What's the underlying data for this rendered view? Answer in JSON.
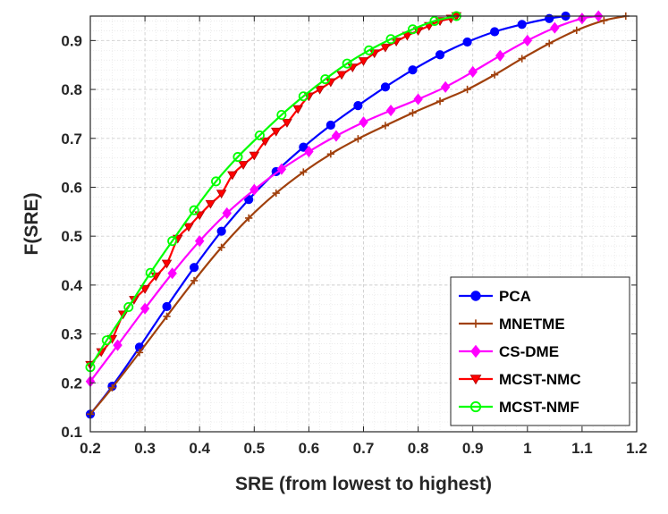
{
  "chart_data": {
    "type": "line",
    "xlabel": "SRE (from lowest to highest)",
    "ylabel": "F(SRE)",
    "xlim": [
      0.2,
      1.2
    ],
    "ylim": [
      0.1,
      0.95
    ],
    "x_ticks": [
      "0.2",
      "0.3",
      "0.4",
      "0.5",
      "0.6",
      "0.7",
      "0.8",
      "0.9",
      "1",
      "1.1",
      "1.2"
    ],
    "y_ticks": [
      "0.1",
      "0.2",
      "0.3",
      "0.4",
      "0.5",
      "0.6",
      "0.7",
      "0.8",
      "0.9"
    ],
    "grid": true,
    "minor_grid": true,
    "legend_position": "bottom-right",
    "series": [
      {
        "name": "PCA",
        "color": "#0000ff",
        "marker": "circle",
        "x": [
          0.2,
          0.24,
          0.29,
          0.34,
          0.39,
          0.44,
          0.49,
          0.54,
          0.59,
          0.64,
          0.69,
          0.74,
          0.79,
          0.84,
          0.89,
          0.94,
          0.99,
          1.04,
          1.07
        ],
        "y": [
          0.136,
          0.193,
          0.273,
          0.356,
          0.436,
          0.51,
          0.575,
          0.632,
          0.682,
          0.727,
          0.767,
          0.805,
          0.84,
          0.871,
          0.897,
          0.918,
          0.933,
          0.945,
          0.95
        ]
      },
      {
        "name": "MNETME",
        "color": "#a0400c",
        "marker": "plus",
        "x": [
          0.2,
          0.24,
          0.29,
          0.34,
          0.39,
          0.44,
          0.49,
          0.54,
          0.59,
          0.64,
          0.69,
          0.74,
          0.79,
          0.84,
          0.89,
          0.94,
          0.99,
          1.04,
          1.09,
          1.14,
          1.18
        ],
        "y": [
          0.136,
          0.19,
          0.262,
          0.336,
          0.409,
          0.477,
          0.537,
          0.588,
          0.631,
          0.668,
          0.699,
          0.726,
          0.752,
          0.776,
          0.8,
          0.83,
          0.863,
          0.894,
          0.921,
          0.941,
          0.95
        ]
      },
      {
        "name": "CS-DME",
        "color": "#ff00ff",
        "marker": "diamond",
        "x": [
          0.2,
          0.25,
          0.3,
          0.35,
          0.4,
          0.45,
          0.5,
          0.55,
          0.6,
          0.65,
          0.7,
          0.75,
          0.8,
          0.85,
          0.9,
          0.95,
          1.0,
          1.05,
          1.1,
          1.13
        ],
        "y": [
          0.203,
          0.277,
          0.352,
          0.424,
          0.49,
          0.547,
          0.595,
          0.637,
          0.673,
          0.705,
          0.733,
          0.757,
          0.78,
          0.805,
          0.836,
          0.869,
          0.9,
          0.926,
          0.945,
          0.95
        ]
      },
      {
        "name": "MCST-NMC",
        "color": "#ff0000",
        "marker": "triangle-down",
        "x": [
          0.2,
          0.22,
          0.24,
          0.26,
          0.28,
          0.3,
          0.32,
          0.34,
          0.36,
          0.38,
          0.4,
          0.42,
          0.44,
          0.46,
          0.48,
          0.5,
          0.52,
          0.54,
          0.56,
          0.58,
          0.6,
          0.62,
          0.64,
          0.66,
          0.68,
          0.7,
          0.72,
          0.74,
          0.76,
          0.78,
          0.8,
          0.82,
          0.84,
          0.86,
          0.87
        ],
        "y": [
          0.237,
          0.263,
          0.29,
          0.34,
          0.37,
          0.392,
          0.418,
          0.444,
          0.495,
          0.519,
          0.543,
          0.566,
          0.587,
          0.625,
          0.646,
          0.665,
          0.694,
          0.714,
          0.732,
          0.76,
          0.786,
          0.8,
          0.815,
          0.83,
          0.845,
          0.858,
          0.874,
          0.886,
          0.898,
          0.91,
          0.92,
          0.93,
          0.94,
          0.945,
          0.95
        ]
      },
      {
        "name": "MCST-NMF",
        "color": "#00ff00",
        "marker": "circle-open",
        "x": [
          0.2,
          0.23,
          0.27,
          0.31,
          0.35,
          0.39,
          0.43,
          0.47,
          0.51,
          0.55,
          0.59,
          0.63,
          0.67,
          0.71,
          0.75,
          0.79,
          0.83,
          0.87
        ],
        "y": [
          0.232,
          0.287,
          0.355,
          0.425,
          0.49,
          0.553,
          0.612,
          0.662,
          0.706,
          0.748,
          0.786,
          0.821,
          0.853,
          0.88,
          0.903,
          0.923,
          0.94,
          0.95
        ]
      }
    ]
  }
}
